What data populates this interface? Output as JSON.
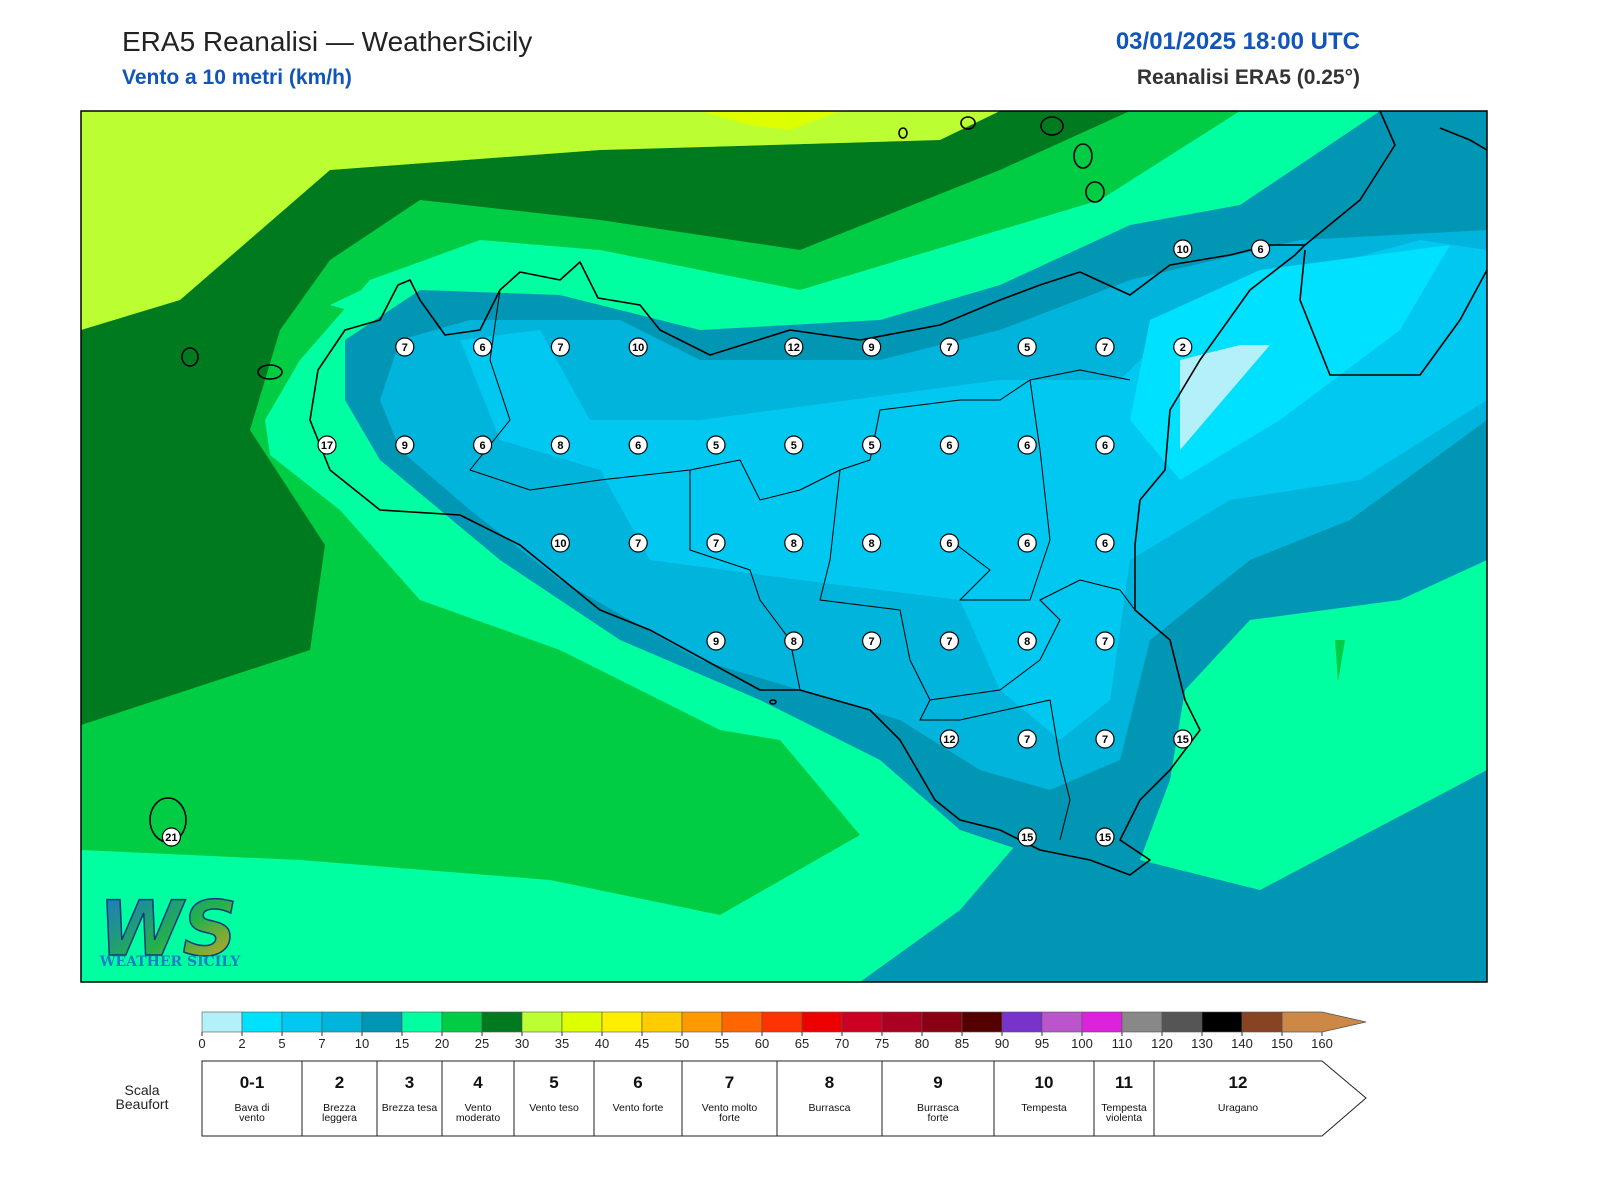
{
  "header": {
    "title": "ERA5 Reanalisi — WeatherSicily",
    "subtitle": "Vento a 10 metri (km/h)",
    "datetime": "03/01/2025 18:00 UTC",
    "source": "Reanalisi ERA5 (0.25°)"
  },
  "stations": [
    10,
    6,
    7,
    6,
    7,
    10,
    12,
    9,
    7,
    5,
    7,
    2,
    17,
    9,
    6,
    8,
    6,
    5,
    5,
    5,
    6,
    6,
    6,
    10,
    7,
    7,
    8,
    8,
    6,
    6,
    6,
    9,
    8,
    7,
    7,
    8,
    7,
    12,
    7,
    7,
    15,
    21,
    15,
    15
  ],
  "colorbar": {
    "ticks": [
      0,
      2,
      5,
      7,
      10,
      15,
      20,
      25,
      30,
      35,
      40,
      45,
      50,
      55,
      60,
      65,
      70,
      75,
      80,
      85,
      90,
      95,
      100,
      110,
      120,
      130,
      140,
      150,
      160
    ],
    "colors": [
      "#b3f0fa",
      "#00e0ff",
      "#00c8f0",
      "#00b4dc",
      "#0096b4",
      "#00ffa0",
      "#00cc44",
      "#007a1e",
      "#bbff33",
      "#ddff00",
      "#ffee00",
      "#ffcc00",
      "#ff9900",
      "#ff6600",
      "#ff3300",
      "#ee0000",
      "#cc0022",
      "#aa0022",
      "#880011",
      "#550000",
      "#7733cc",
      "#bb55cc",
      "#dd22dd",
      "#888888",
      "#555555",
      "#000000",
      "#884422",
      "#cc8844"
    ]
  },
  "beaufort": {
    "label": "Scala Beaufort",
    "levels": [
      {
        "number": "0-1",
        "name": "Bava di vento"
      },
      {
        "number": "2",
        "name": "Brezza leggera"
      },
      {
        "number": "3",
        "name": "Brezza tesa"
      },
      {
        "number": "4",
        "name": "Vento moderato"
      },
      {
        "number": "5",
        "name": "Vento teso"
      },
      {
        "number": "6",
        "name": "Vento forte"
      },
      {
        "number": "7",
        "name": "Vento molto forte"
      },
      {
        "number": "8",
        "name": "Burrasca"
      },
      {
        "number": "9",
        "name": "Burrasca forte"
      },
      {
        "number": "10",
        "name": "Tempesta"
      },
      {
        "number": "11",
        "name": "Tempesta violenta"
      },
      {
        "number": "12",
        "name": "Uragano"
      }
    ]
  },
  "logo": {
    "mark": "WS",
    "name": "WEATHER SICILY"
  }
}
